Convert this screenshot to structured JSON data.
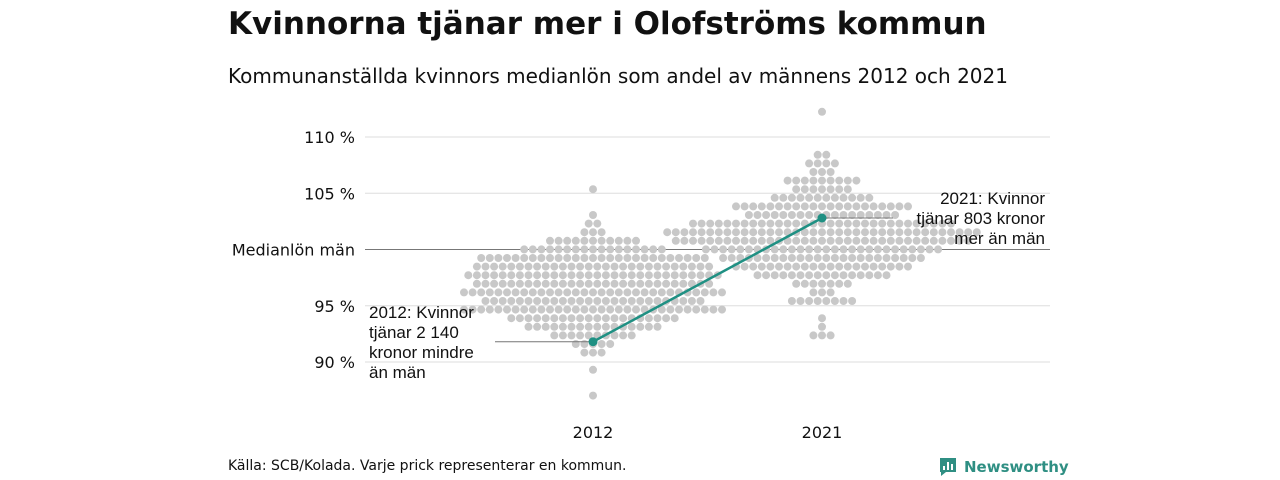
{
  "header": {
    "title": "Kvinnorna tjänar mer i Olofströms kommun",
    "subtitle": "Kommunanställda kvinnors medianlön som andel av männens 2012 och 2021"
  },
  "footer": {
    "source": "Källa: SCB/Kolada. Varje prick representerar en kommun.",
    "brand": "Newsworthy"
  },
  "colors": {
    "dots": "#c8c8c8",
    "highlight": "#1f9083",
    "gridline": "#dddddd",
    "reference": "#777777",
    "brand": "#2f8f83"
  },
  "chart_data": {
    "type": "scatter",
    "variant": "beeswarm",
    "categories": [
      "2012",
      "2021"
    ],
    "y_axis": {
      "ylim": [
        86,
        112
      ],
      "ticks": [
        {
          "value": 90,
          "label": "90 %"
        },
        {
          "value": 95,
          "label": "95 %"
        },
        {
          "value": 100,
          "label": "Medianlön män"
        },
        {
          "value": 105,
          "label": "105 %"
        },
        {
          "value": 110,
          "label": "110 %"
        }
      ]
    },
    "reference_line": {
      "value": 100,
      "label": "Medianlön män"
    },
    "distributions": [
      {
        "category": "2012",
        "min": 86.8,
        "max": 105.3,
        "center": 96.5,
        "spread": 2.6,
        "count": 290
      },
      {
        "category": "2021",
        "min": 92.6,
        "max": 112.3,
        "center": 101.3,
        "spread": 2.7,
        "count": 290
      }
    ],
    "highlight": {
      "name": "Olofström",
      "points": [
        {
          "category": "2012",
          "value": 91.8
        },
        {
          "category": "2021",
          "value": 102.8
        }
      ]
    },
    "annotations": [
      {
        "category": "2012",
        "value": 91.8,
        "lines": [
          "2012: Kvinnor",
          "tjänar 2 140",
          "kronor mindre",
          "än män"
        ]
      },
      {
        "category": "2021",
        "value": 102.8,
        "lines": [
          "2021: Kvinnor",
          "tjänar 803 kronor",
          "mer än män"
        ]
      }
    ]
  }
}
